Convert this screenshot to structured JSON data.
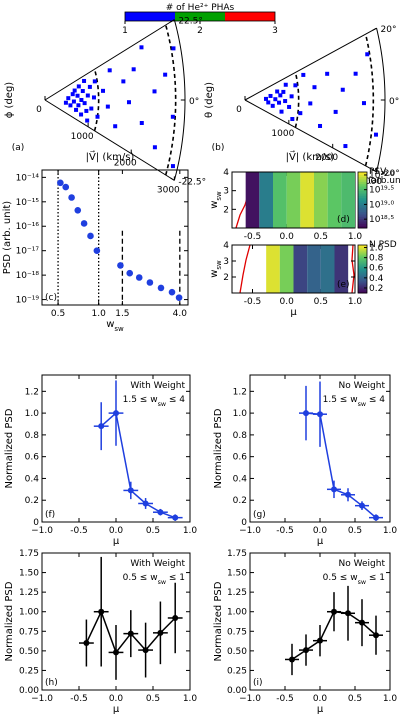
{
  "chart_data": [
    {
      "type": "polar",
      "panel_label": "(a)",
      "ylabel": "ϕ (deg)",
      "xlabel": "|V⃗| (km/s)",
      "rlim": [
        0,
        3000
      ],
      "rticks": [
        0,
        1000,
        2000,
        3000
      ],
      "thetalim": [
        -22.5,
        22.5
      ],
      "thetaticks": [
        {
          "value": 22.5,
          "label": "22.5°"
        },
        {
          "value": 0,
          "label": "0°"
        },
        {
          "value": -22.5,
          "label": "-22.5°"
        }
      ],
      "dashed_r": [
        1150,
        2800
      ],
      "color": "#0000ff",
      "r": [
        450,
        500,
        550,
        600,
        620,
        650,
        680,
        700,
        720,
        750,
        780,
        800,
        820,
        850,
        880,
        900,
        920,
        950,
        980,
        1000,
        1050,
        1100,
        1150,
        1250,
        1350,
        1450,
        1550,
        1700,
        1800,
        1950,
        2100,
        2200,
        2350,
        2450,
        2600,
        2750,
        2850,
        2900
      ],
      "theta": [
        -5,
        3,
        -8,
        8,
        -2,
        12,
        -12,
        5,
        -6,
        15,
        0,
        -15,
        9,
        -3,
        18,
        -10,
        4,
        -18,
        11,
        -7,
        2,
        14,
        -12,
        6,
        -4,
        17,
        -14,
        9,
        -1,
        13,
        -9,
        20,
        3,
        -16,
        8,
        -5,
        15,
        -19
      ],
      "colorbar": {
        "title": "# of He²⁺ PHAs",
        "ticks": [
          1,
          2,
          3
        ],
        "colors": [
          "#0000ff",
          "#00a000",
          "#ff0000"
        ]
      }
    },
    {
      "type": "polar",
      "panel_label": "(b)",
      "ylabel": "θ (deg)",
      "xlabel": "|V⃗| (km/s)",
      "rlim": [
        0,
        3000
      ],
      "rticks": [
        0,
        1000,
        2000,
        3000
      ],
      "thetalim": [
        -20,
        20
      ],
      "thetaticks": [
        {
          "value": 20,
          "label": "20°"
        },
        {
          "value": 0,
          "label": "0°"
        },
        {
          "value": -20,
          "label": "-20°"
        }
      ],
      "dashed_r": [
        1150,
        2750
      ],
      "color": "#0000ff",
      "r": [
        450,
        500,
        550,
        600,
        650,
        700,
        730,
        760,
        800,
        830,
        860,
        900,
        950,
        1000,
        1050,
        1100,
        1200,
        1300,
        1400,
        1500,
        1650,
        1800,
        1950,
        2100,
        2250,
        2400,
        2550,
        2700,
        2850
      ],
      "theta": [
        2,
        -4,
        6,
        -8,
        1,
        10,
        -3,
        5,
        -12,
        8,
        -1,
        14,
        -6,
        3,
        -15,
        11,
        -9,
        16,
        -2,
        7,
        -13,
        12,
        -5,
        4,
        -17,
        9,
        -1,
        14,
        -10
      ]
    },
    {
      "type": "scatter",
      "panel_label": "(c)",
      "ylabel": "PSD (arb. unit)",
      "xlabel": [
        "w",
        "sw"
      ],
      "color": "#1f3fdf",
      "xlog": true,
      "ylog": true,
      "xlim": [
        0.38,
        4.6
      ],
      "ylim": [
        6e-20,
        2e-14
      ],
      "xticks": [
        0.5,
        {
          "value": 1,
          "label": "1.0"
        },
        1.5,
        {
          "value": 4,
          "label": "4.0"
        }
      ],
      "yticks": [
        {
          "value": 1e-19,
          "label": "10⁻¹⁹"
        },
        {
          "value": 1e-18,
          "label": "10⁻¹⁸"
        },
        {
          "value": 1e-17,
          "label": "10⁻¹⁷"
        },
        {
          "value": 1e-16,
          "label": "10⁻¹⁶"
        },
        {
          "value": 1e-15,
          "label": "10⁻¹⁵"
        },
        {
          "value": 1e-14,
          "label": "10⁻¹⁴"
        }
      ],
      "dotted_x": [
        0.5,
        1.0
      ],
      "dashed_x": [
        1.5,
        4.0
      ],
      "x": [
        0.52,
        0.57,
        0.63,
        0.7,
        0.78,
        0.87,
        0.97,
        1.45,
        1.7,
        2.0,
        2.4,
        2.9,
        3.5,
        3.95
      ],
      "values": [
        6e-15,
        4e-15,
        1.5e-15,
        4.5e-16,
        1.3e-16,
        4e-17,
        1e-17,
        2.5e-18,
        1.2e-18,
        8e-19,
        5e-19,
        3e-19,
        2e-19,
        1.2e-19
      ]
    },
    {
      "type": "heatmap",
      "panel_label": "(d)",
      "ylabel": [
        "w",
        "sw"
      ],
      "xlim": [
        -0.8,
        1.0
      ],
      "ylim": [
        1,
        4
      ],
      "xticks": [
        -0.5,
        {
          "value": 0,
          "label": "0.0"
        },
        0.5,
        {
          "value": 1,
          "label": "1.0"
        }
      ],
      "yticks": [
        2,
        3,
        4
      ],
      "x_edges": [
        -0.6,
        -0.4,
        -0.2,
        0,
        0.2,
        0.4,
        0.6,
        0.8,
        1.0
      ],
      "values": [
        18.3,
        19.0,
        19.55,
        19.7,
        20.0,
        19.75,
        19.6,
        19.5
      ],
      "colorbar_title": "PSV",
      "colorbar_subtitle": "(arb.unit)",
      "clim": [
        18.2,
        20.1
      ],
      "cticks": [
        {
          "value": 18.5,
          "label": "10¹⁸·⁵"
        },
        {
          "value": 19,
          "label": "10¹⁹·⁰"
        },
        {
          "value": 19.5,
          "label": "10¹⁹·⁵"
        },
        {
          "value": 20,
          "label": "10²⁰·⁰"
        }
      ]
    },
    {
      "type": "heatmap",
      "panel_label": "(e)",
      "ylabel": [
        "w",
        "sw"
      ],
      "xlabel": "μ",
      "xlim": [
        -0.8,
        1.0
      ],
      "ylim": [
        1,
        4
      ],
      "xticks": [
        -0.5,
        {
          "value": 0,
          "label": "0.0"
        },
        0.5,
        {
          "value": 1,
          "label": "1.0"
        }
      ],
      "yticks": [
        2,
        3,
        4
      ],
      "x_edges": [
        -0.3,
        -0.1,
        0.1,
        0.3,
        0.5,
        0.7,
        0.9
      ],
      "values": [
        1.0,
        0.85,
        0.3,
        0.4,
        0.45,
        0.25
      ],
      "colorbar_title": "N PSD",
      "clim": [
        0.1,
        1.05
      ],
      "cticks": [
        0.2,
        0.4,
        0.6,
        0.8,
        {
          "value": 1,
          "label": "1.0"
        }
      ]
    },
    {
      "type": "line",
      "panel_label": "(f)",
      "title": "With Weight",
      "range": [
        "1.5 ≤ w",
        "sw",
        " ≤ 4"
      ],
      "ylabel": "Normalized PSD",
      "xlabel": "μ",
      "color": "#1f3fdf",
      "xlim": [
        -1,
        1
      ],
      "ylim": [
        0,
        1.35
      ],
      "xticks": [
        {
          "value": -1,
          "label": "−1.0"
        },
        -0.5,
        {
          "value": 0,
          "label": "0.0"
        },
        0.5,
        {
          "value": 1,
          "label": "1.0"
        }
      ],
      "yticks": [
        0,
        0.2,
        0.4,
        0.6,
        0.8,
        {
          "value": 1,
          "label": "1.0"
        },
        1.2
      ],
      "x": [
        -0.2,
        0,
        0.2,
        0.4,
        0.6,
        0.8
      ],
      "values": [
        0.88,
        1.0,
        0.29,
        0.17,
        0.09,
        0.04
      ],
      "yerr": [
        0.22,
        0.3,
        0.08,
        0.05,
        0.03,
        0.03
      ],
      "xerr": [
        0.1,
        0.1,
        0.1,
        0.1,
        0.1,
        0.1
      ]
    },
    {
      "type": "line",
      "panel_label": "(g)",
      "title": "No Weight",
      "range": [
        "1.5 ≤ w",
        "sw",
        " ≤ 4"
      ],
      "ylabel": "Normalized PSD",
      "xlabel": "μ",
      "color": "#1f3fdf",
      "xlim": [
        -1,
        1
      ],
      "ylim": [
        0,
        1.35
      ],
      "xticks": [
        {
          "value": -1,
          "label": "−1.0"
        },
        -0.5,
        {
          "value": 0,
          "label": "0.0"
        },
        0.5,
        {
          "value": 1,
          "label": "1.0"
        }
      ],
      "yticks": [
        0,
        0.2,
        0.4,
        0.6,
        0.8,
        {
          "value": 1,
          "label": "1.0"
        },
        1.2
      ],
      "x": [
        -0.2,
        0,
        0.2,
        0.4,
        0.6,
        0.8
      ],
      "values": [
        1.0,
        0.99,
        0.3,
        0.25,
        0.15,
        0.04
      ],
      "yerr": [
        0.25,
        0.3,
        0.08,
        0.06,
        0.04,
        0.03
      ],
      "xerr": [
        0.1,
        0.1,
        0.1,
        0.1,
        0.1,
        0.1
      ]
    },
    {
      "type": "line",
      "panel_label": "(h)",
      "title": "With Weight",
      "range": [
        "0.5 ≤ w",
        "sw",
        " ≤ 1"
      ],
      "ylabel": "Normalized PSD",
      "xlabel": "μ",
      "color": "#000000",
      "xlim": [
        -1,
        1
      ],
      "ylim": [
        0,
        1.75
      ],
      "xticks": [
        {
          "value": -1,
          "label": "−1.0"
        },
        -0.5,
        {
          "value": 0,
          "label": "0.0"
        },
        0.5,
        {
          "value": 1,
          "label": "1.0"
        }
      ],
      "yticks": [
        {
          "value": 0,
          "label": "0.00"
        },
        0.25,
        {
          "value": 0.5,
          "label": "0.50"
        },
        0.75,
        {
          "value": 1,
          "label": "1.00"
        },
        1.25,
        {
          "value": 1.5,
          "label": "1.50"
        },
        1.75
      ],
      "x": [
        -0.4,
        -0.2,
        0,
        0.2,
        0.4,
        0.6,
        0.8
      ],
      "values": [
        0.6,
        1.0,
        0.48,
        0.72,
        0.51,
        0.73,
        0.92
      ],
      "yerr": [
        0.3,
        0.7,
        0.35,
        0.3,
        0.35,
        0.4,
        0.45
      ],
      "xerr": [
        0.1,
        0.1,
        0.1,
        0.1,
        0.1,
        0.1,
        0.1
      ]
    },
    {
      "type": "line",
      "panel_label": "(i)",
      "title": "No Weight",
      "range": [
        "0.5 ≤ w",
        "sw",
        " ≤ 1"
      ],
      "ylabel": "Normalized PSD",
      "xlabel": "μ",
      "color": "#000000",
      "xlim": [
        -1,
        1
      ],
      "ylim": [
        0,
        1.75
      ],
      "xticks": [
        {
          "value": -1,
          "label": "−1.0"
        },
        -0.5,
        {
          "value": 0,
          "label": "0.0"
        },
        0.5,
        {
          "value": 1,
          "label": "1.0"
        }
      ],
      "yticks": [
        {
          "value": 0,
          "label": "0.00"
        },
        0.25,
        {
          "value": 0.5,
          "label": "0.50"
        },
        0.75,
        {
          "value": 1,
          "label": "1.00"
        },
        1.25,
        {
          "value": 1.5,
          "label": "1.50"
        },
        1.75
      ],
      "x": [
        -0.4,
        -0.2,
        0,
        0.2,
        0.4,
        0.6,
        0.8
      ],
      "values": [
        0.39,
        0.51,
        0.63,
        1.0,
        0.98,
        0.86,
        0.7
      ],
      "yerr": [
        0.2,
        0.2,
        0.2,
        0.25,
        0.35,
        0.3,
        0.25
      ],
      "xerr": [
        0.1,
        0.1,
        0.1,
        0.1,
        0.1,
        0.1,
        0.1
      ]
    }
  ]
}
